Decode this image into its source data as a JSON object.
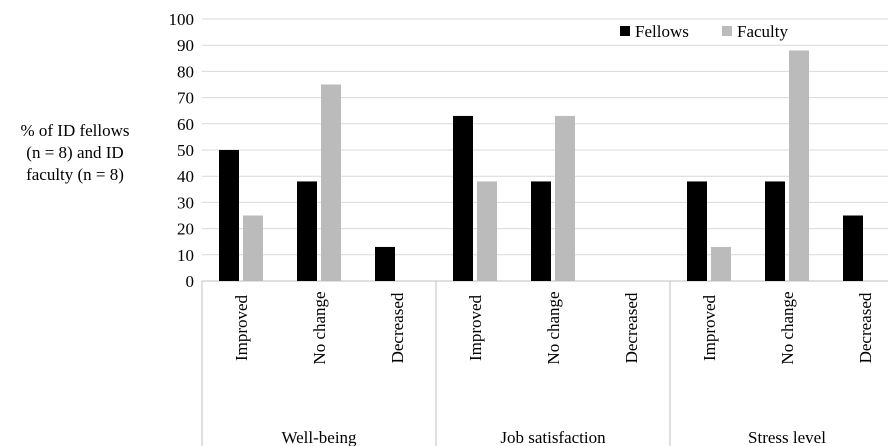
{
  "chart_data": {
    "type": "bar",
    "ylabel_lines": [
      "% of ID fellows",
      "(n = 8) and ID",
      "faculty (n = 8)"
    ],
    "ylim": [
      0,
      100
    ],
    "yticks": [
      0,
      10,
      20,
      30,
      40,
      50,
      60,
      70,
      80,
      90,
      100
    ],
    "grid": true,
    "legend_position": "top-right",
    "groups": [
      "Well-being",
      "Job satisfaction",
      "Stress level"
    ],
    "categories": [
      "Improved",
      "No change",
      "Decreased",
      "Improved",
      "No change",
      "Decreased",
      "Improved",
      "No change",
      "Decreased"
    ],
    "series": [
      {
        "name": "Fellows",
        "color": "#000000",
        "values": [
          50,
          38,
          13,
          63,
          38,
          0,
          38,
          38,
          25
        ]
      },
      {
        "name": "Faculty",
        "color": "#bbbbbb",
        "values": [
          25,
          75,
          0,
          38,
          63,
          0,
          13,
          88,
          0
        ]
      }
    ]
  }
}
